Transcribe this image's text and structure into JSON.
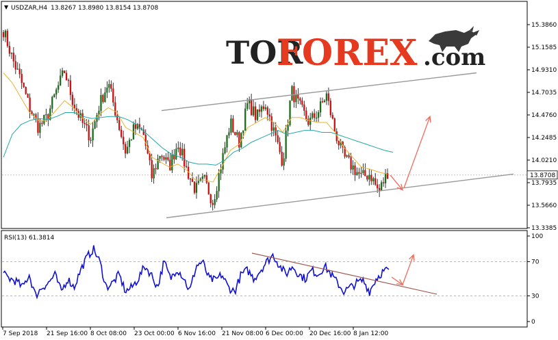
{
  "chart_data": [
    {
      "type": "candlestick",
      "header": {
        "symbol": "USDZAR,H4",
        "ohlc": [
          "13.8267",
          "13.8980",
          "13.8154",
          "13.8708"
        ]
      },
      "ylim": [
        13.3385,
        15.386
      ],
      "y_ticks": [
        "15.3860",
        "15.1585",
        "14.9310",
        "14.7035",
        "14.4760",
        "14.2485",
        "14.0210",
        "13.7935",
        "13.5660",
        "13.3385"
      ],
      "current_price": "13.8708",
      "x_ticks": [
        "7 Sep 2018",
        "21 Sep 16:00",
        "8 Oct 08:00",
        "23 Oct 00:00",
        "6 Nov 16:00",
        "21 Nov 08:00",
        "6 Dec 00:00",
        "20 Dec 16:00",
        "8 Jan 12:00"
      ],
      "price_path": [
        15.33,
        15.05,
        14.82,
        14.55,
        14.35,
        14.45,
        14.7,
        14.92,
        14.6,
        14.4,
        14.25,
        14.58,
        14.8,
        14.45,
        14.1,
        14.35,
        14.3,
        13.85,
        14.1,
        13.95,
        14.2,
        13.92,
        13.72,
        13.82,
        13.6,
        14.0,
        14.4,
        14.2,
        14.6,
        14.45,
        14.6,
        14.3,
        14.0,
        14.72,
        14.55,
        14.4,
        14.5,
        14.68,
        14.3,
        14.05,
        13.95,
        13.85,
        13.88,
        13.7,
        13.9
      ],
      "series": [
        {
          "name": "",
          "color": "#f0b030",
          "values": [
            14.9,
            14.8,
            14.65,
            14.5,
            14.42,
            14.42,
            14.52,
            14.62,
            14.55,
            14.45,
            14.38,
            14.48,
            14.55,
            14.5,
            14.35,
            14.3,
            14.25,
            14.05,
            14.0,
            13.95,
            13.98,
            13.92,
            13.82,
            13.82,
            13.8,
            13.95,
            14.12,
            14.18,
            14.35,
            14.4,
            14.45,
            14.4,
            14.3,
            14.45,
            14.45,
            14.42,
            14.4,
            14.4,
            14.3,
            14.15,
            14.05,
            13.95,
            13.93,
            13.9,
            13.88
          ]
        },
        {
          "name": "",
          "color": "#20a8a8",
          "values": [
            14.05,
            14.28,
            14.38,
            14.42,
            14.44,
            14.43,
            14.46,
            14.5,
            14.5,
            14.46,
            14.44,
            14.45,
            14.46,
            14.46,
            14.43,
            14.38,
            14.3,
            14.22,
            14.14,
            14.08,
            14.05,
            14.0,
            13.98,
            13.98,
            13.97,
            14.02,
            14.1,
            14.14,
            14.2,
            14.24,
            14.28,
            14.32,
            14.28,
            14.3,
            14.32,
            14.32,
            14.3,
            14.3,
            14.27,
            14.24,
            14.21,
            14.18,
            14.15,
            14.12,
            14.1
          ]
        }
      ],
      "lines": [
        {
          "color": "#999999",
          "points": [
            [
              236,
              14.52
            ],
            [
              696,
              14.9
            ]
          ]
        },
        {
          "color": "#999999",
          "points": [
            [
              243,
              13.44
            ],
            [
              750,
              13.88
            ]
          ]
        }
      ],
      "arrows": [
        {
          "color": "#f06a5a",
          "from": [
            570,
            13.87
          ],
          "to": [
            588,
            13.72
          ]
        },
        {
          "color": "#f06a5a",
          "from": [
            590,
            13.74
          ],
          "to": [
            628,
            14.46
          ]
        }
      ]
    },
    {
      "type": "line",
      "title": "RSI(13) 61.3814",
      "ylim": [
        0,
        100
      ],
      "y_ticks": [
        "100",
        "70",
        "30",
        "0"
      ],
      "levels": [
        70,
        30
      ],
      "series": [
        {
          "name": "RSI(13)",
          "color": "#1010d0",
          "values": [
            55,
            50,
            47,
            40,
            55,
            30,
            40,
            45,
            55,
            35,
            50,
            40,
            60,
            75,
            85,
            70,
            40,
            45,
            55,
            35,
            40,
            50,
            65,
            55,
            40,
            70,
            50,
            62,
            52,
            35,
            65,
            70,
            50,
            48,
            55,
            40,
            35,
            55,
            60,
            50,
            60,
            70,
            78,
            65,
            55,
            65,
            55,
            50,
            60,
            55,
            65,
            55,
            45,
            35,
            40,
            45,
            48,
            35,
            50,
            58,
            61
          ]
        }
      ],
      "lines": [
        {
          "color": "#a05a50",
          "points": [
            [
              368,
              80
            ],
            [
              638,
              32
            ]
          ]
        }
      ],
      "arrows": [
        {
          "color": "#f06a5a",
          "from": [
            572,
            52
          ],
          "to": [
            588,
            43
          ]
        },
        {
          "color": "#f06a5a",
          "from": [
            588,
            43
          ],
          "to": [
            604,
            78
          ]
        }
      ]
    }
  ],
  "logo": {
    "part1": "TOR",
    "part2": "FOREX",
    "part3": ".com",
    "color_dark": "#222222",
    "color_accent": "#e53a1f"
  }
}
